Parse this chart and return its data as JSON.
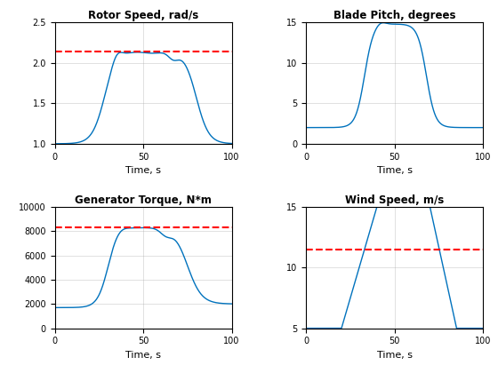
{
  "title1": "Rotor Speed, rad/s",
  "title2": "Blade Pitch, degrees",
  "title3": "Generator Torque, N*m",
  "title4": "Wind Speed, m/s",
  "xlabel": "Time, s",
  "xlim": [
    0,
    100
  ],
  "rotor_ylim": [
    1,
    2.5
  ],
  "pitch_ylim": [
    0,
    15
  ],
  "torque_ylim": [
    0,
    10000
  ],
  "wind_ylim": [
    5,
    15
  ],
  "rotor_ref": 2.14,
  "torque_ref": 8300,
  "wind_ref": 11.5,
  "line_color": "#0072BD",
  "ref_color": "#FF0000",
  "bg_color": "#FFFFFF",
  "grid_color": "#AAAAAA"
}
